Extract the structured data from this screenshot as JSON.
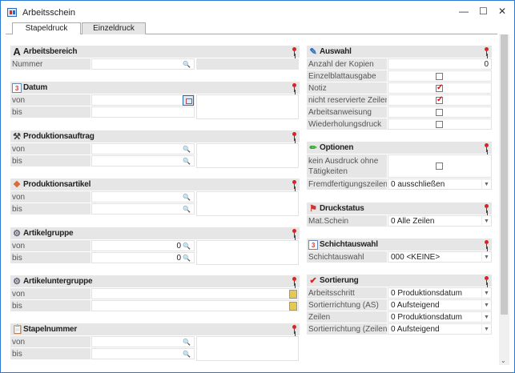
{
  "window": {
    "title": "Arbeitsschein",
    "minimize": "—",
    "maximize": "☐",
    "close": "✕"
  },
  "tabs": [
    {
      "label": "Stapeldruck",
      "active": true
    },
    {
      "label": "Einzeldruck",
      "active": false
    }
  ],
  "left": {
    "arbeitsbereich": {
      "title": "Arbeitsbereich",
      "icon": "letter-a-icon",
      "nummer_label": "Nummer",
      "nummer_value": ""
    },
    "datum": {
      "title": "Datum",
      "icon": "calendar-icon",
      "von": "von",
      "bis": "bis"
    },
    "produktionsauftrag": {
      "title": "Produktionsauftrag",
      "icon": "hammer-icon",
      "von": "von",
      "bis": "bis"
    },
    "produktionsartikel": {
      "title": "Produktionsartikel",
      "icon": "items-icon",
      "von": "von",
      "bis": "bis"
    },
    "artikelgruppe": {
      "title": "Artikelgruppe",
      "icon": "gears-icon",
      "von": "von",
      "bis": "bis",
      "von_value": "0",
      "bis_value": "0"
    },
    "artikeluntergruppe": {
      "title": "Artikeluntergruppe",
      "icon": "gears-icon",
      "von": "von",
      "bis": "bis"
    },
    "stapelnummer": {
      "title": "Stapelnummer",
      "icon": "clipboard-icon",
      "von": "von",
      "bis": "bis"
    }
  },
  "right": {
    "auswahl": {
      "title": "Auswahl",
      "icon": "edit-icon",
      "rows": [
        {
          "label": "Anzahl der Kopien",
          "value": "0"
        },
        {
          "label": "Einzelblattausgabe",
          "checked": false
        },
        {
          "label": "Notiz",
          "checked": true
        },
        {
          "label": "nicht reservierte Zeilen",
          "checked": true
        },
        {
          "label": "Arbeitsanweisung",
          "checked": false
        },
        {
          "label": "Wiederholungsdruck",
          "checked": false
        }
      ]
    },
    "optionen": {
      "title": "Optionen",
      "icon": "pencil-icon",
      "kein_label": "kein Ausdruck ohne Tätigkeiten",
      "kein_checked": false,
      "fremd_label": "Fremdfertigungszeilen",
      "fremd_value": "0 ausschließen"
    },
    "druckstatus": {
      "title": "Druckstatus",
      "icon": "print-status-icon",
      "label": "Mat.Schein",
      "value": "0 Alle Zeilen"
    },
    "schichtauswahl": {
      "title": "Schichtauswahl",
      "icon": "calendar-icon",
      "label": "Schichtauswahl",
      "value": "000 <KEINE>"
    },
    "sortierung": {
      "title": "Sortierung",
      "icon": "check-icon",
      "rows": [
        {
          "label": "Arbeitsschritt",
          "value": "0 Produktionsdatum"
        },
        {
          "label": "Sortierrichtung (AS)",
          "value": "0 Aufsteigend"
        },
        {
          "label": "Zeilen",
          "value": "0 Produktionsdatum"
        },
        {
          "label": "Sortierrichtung (Zeilen)",
          "value": "0 Aufsteigend"
        }
      ]
    }
  }
}
